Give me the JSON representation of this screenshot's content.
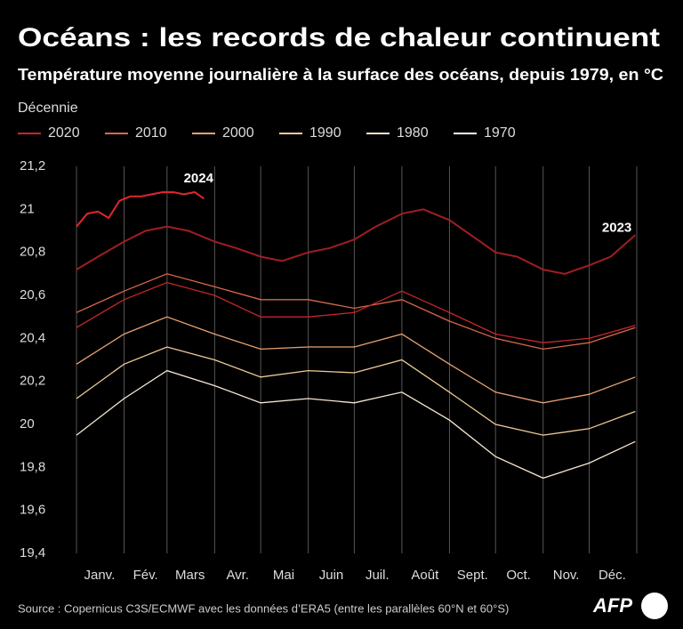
{
  "chart_data": {
    "type": "line",
    "title": "Océans : les records de chaleur continuent",
    "subtitle": "Température moyenne journalière à la surface des océans, depuis 1979, en °C",
    "legend": {
      "title": "Décennie",
      "items": [
        {
          "name": "2020",
          "color": "#c8262c"
        },
        {
          "name": "2010",
          "color": "#d9694a"
        },
        {
          "name": "2000",
          "color": "#e8a273"
        },
        {
          "name": "1990",
          "color": "#f0cc98"
        },
        {
          "name": "1980",
          "color": "#f6e8d2"
        },
        {
          "name": "1970",
          "color": "#ffffff"
        }
      ]
    },
    "source": "Source : Copernicus C3S/ECMWF avec les données d’ERA5 (entre les parallèles 60°N et 60°S)",
    "logo": "AFP",
    "xlim": [
      1,
      366
    ],
    "xticks": [
      1,
      32,
      60,
      91,
      121,
      152,
      182,
      213,
      244,
      274,
      305,
      335
    ],
    "month_labels": [
      {
        "value": 16,
        "label": "Janv."
      },
      {
        "value": 46,
        "label": "Fév."
      },
      {
        "value": 75,
        "label": "Mars"
      },
      {
        "value": 106,
        "label": "Avr."
      },
      {
        "value": 136,
        "label": "Mai"
      },
      {
        "value": 167,
        "label": "Juin"
      },
      {
        "value": 197,
        "label": "Juil."
      },
      {
        "value": 228,
        "label": "Août"
      },
      {
        "value": 259,
        "label": "Sept."
      },
      {
        "value": 289,
        "label": "Oct."
      },
      {
        "value": 320,
        "label": "Nov."
      },
      {
        "value": 350,
        "label": "Déc."
      }
    ],
    "ylim": [
      19.4,
      21.2
    ],
    "yticks": [
      {
        "value": 19.4,
        "label": "19,4"
      },
      {
        "value": 19.6,
        "label": "19,6"
      },
      {
        "value": 19.8,
        "label": "19,8"
      },
      20,
      {
        "value": 20.2,
        "label": "20,2"
      },
      {
        "value": 20.4,
        "label": "20,4"
      },
      {
        "value": 20.6,
        "label": "20,6"
      },
      {
        "value": 20.8,
        "label": "20,8"
      },
      21,
      {
        "value": 21.2,
        "label": "21,2"
      }
    ],
    "series": [
      {
        "color": "#f6e8d2",
        "x": [
          1,
          32,
          60,
          91,
          121,
          152,
          182,
          213,
          244,
          274,
          305,
          335,
          365
        ],
        "values": [
          19.95,
          20.12,
          20.25,
          20.18,
          20.1,
          20.12,
          20.1,
          20.15,
          20.02,
          19.85,
          19.75,
          19.82,
          19.92
        ]
      },
      {
        "color": "#f0cc98",
        "x": [
          1,
          32,
          60,
          91,
          121,
          152,
          182,
          213,
          244,
          274,
          305,
          335,
          365
        ],
        "values": [
          20.12,
          20.28,
          20.36,
          20.3,
          20.22,
          20.25,
          20.24,
          20.3,
          20.15,
          20.0,
          19.95,
          19.98,
          20.06
        ]
      },
      {
        "color": "#e8a273",
        "x": [
          1,
          32,
          60,
          91,
          121,
          152,
          182,
          213,
          244,
          274,
          305,
          335,
          365
        ],
        "values": [
          20.28,
          20.42,
          20.5,
          20.42,
          20.35,
          20.36,
          20.36,
          20.42,
          20.28,
          20.15,
          20.1,
          20.14,
          20.22
        ]
      },
      {
        "color": "#d9694a",
        "x": [
          1,
          32,
          60,
          91,
          121,
          152,
          182,
          213,
          244,
          274,
          305,
          335,
          365
        ],
        "values": [
          20.52,
          20.62,
          20.7,
          20.64,
          20.58,
          20.58,
          20.54,
          20.58,
          20.48,
          20.4,
          20.35,
          20.38,
          20.45
        ]
      },
      {
        "color": "#c8262c",
        "x": [
          1,
          32,
          60,
          91,
          121,
          152,
          182,
          213,
          244,
          274,
          305,
          335,
          365
        ],
        "values": [
          20.45,
          20.58,
          20.66,
          20.6,
          20.5,
          20.5,
          20.52,
          20.62,
          20.52,
          20.42,
          20.38,
          20.4,
          20.46
        ]
      },
      {
        "color": "#a01e22",
        "x": [
          1,
          15,
          32,
          46,
          60,
          74,
          91,
          105,
          121,
          135,
          152,
          166,
          182,
          196,
          213,
          227,
          244,
          258,
          274,
          288,
          305,
          319,
          335,
          349,
          365
        ],
        "values": [
          20.72,
          20.78,
          20.85,
          20.9,
          20.92,
          20.9,
          20.85,
          20.82,
          20.78,
          20.76,
          20.8,
          20.82,
          20.86,
          20.92,
          20.98,
          21.0,
          20.95,
          20.88,
          20.8,
          20.78,
          20.72,
          20.7,
          20.74,
          20.78,
          20.88
        ]
      },
      {
        "color": "#e0262c",
        "x": [
          1,
          8,
          15,
          22,
          29,
          36,
          43,
          50,
          57,
          64,
          71,
          78,
          84
        ],
        "values": [
          20.92,
          20.98,
          20.99,
          20.96,
          21.04,
          21.06,
          21.06,
          21.07,
          21.08,
          21.08,
          21.07,
          21.08,
          21.05
        ]
      }
    ],
    "annotations": [
      {
        "text": "2024",
        "series": 6
      },
      {
        "text": "2023",
        "series": 5
      }
    ]
  }
}
